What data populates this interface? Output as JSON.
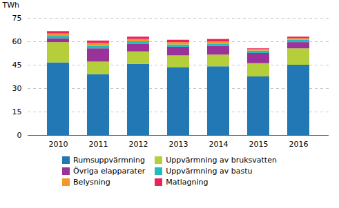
{
  "chart_data": {
    "type": "bar",
    "stacked": true,
    "categories": [
      "2010",
      "2011",
      "2012",
      "2013",
      "2014",
      "2015",
      "2016"
    ],
    "series": [
      {
        "name": "Rumsuppvärmning",
        "color": "#2178b4",
        "values": [
          46.5,
          39.0,
          45.5,
          43.5,
          44.0,
          37.5,
          45.0
        ]
      },
      {
        "name": "Uppvärmning av bruksvatten",
        "color": "#b5cf3b",
        "values": [
          13.0,
          8.0,
          8.0,
          7.5,
          7.5,
          8.5,
          10.5
        ]
      },
      {
        "name": "Övriga elapparater",
        "color": "#993399",
        "values": [
          2.5,
          8.5,
          5.0,
          5.5,
          5.5,
          6.5,
          4.0
        ]
      },
      {
        "name": "Uppvärmning av bastu",
        "color": "#22bcbc",
        "values": [
          1.5,
          1.5,
          1.5,
          1.5,
          1.5,
          1.5,
          1.5
        ]
      },
      {
        "name": "Belysning",
        "color": "#f4962a",
        "values": [
          1.5,
          2.0,
          1.5,
          1.5,
          1.5,
          1.0,
          1.0
        ]
      },
      {
        "name": "Matlagning",
        "color": "#e8245a",
        "values": [
          1.5,
          1.5,
          1.5,
          1.5,
          1.5,
          0.5,
          1.0
        ]
      }
    ],
    "ylabel": "TWh",
    "ylim": [
      0,
      75
    ],
    "yticks": [
      0,
      15,
      30,
      45,
      60,
      75
    ],
    "grid": true,
    "legend": "bottom"
  }
}
